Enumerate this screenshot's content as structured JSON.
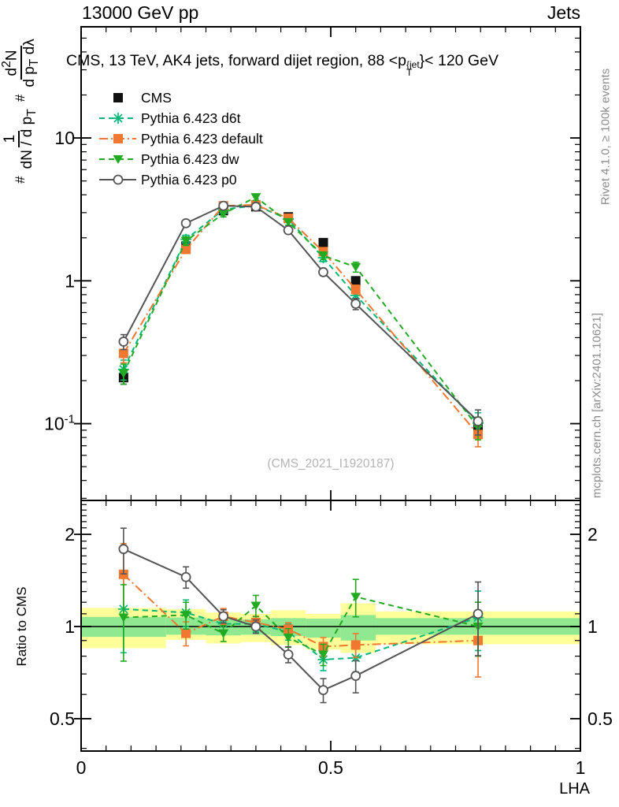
{
  "page": {
    "header_left": "13000 GeV pp",
    "header_right": "Jets",
    "watermark": "(CMS_2021_I1920187)",
    "credit_top": "Rivet 4.1.0, ≥ 100k events",
    "credit_bottom": "mcplots.cern.ch [arXiv:2401.10621]",
    "xlabel": "LHA",
    "ratio_ylabel": "Ratio to CMS"
  },
  "title": {
    "pre": "CMS, 13 TeV, AK4 jets, forward dijet region, 88 <p",
    "sup": "{jet",
    "sub": "T",
    "post": "}< 120 GeV"
  },
  "ylabel": {
    "hash1": "#",
    "f1num": "1",
    "f1den_pre": "dN / d p",
    "f1den_sub": "T",
    "hash2": "#",
    "f2num_pre": "d",
    "f2num_sup": "2",
    "f2num_post": "N",
    "f2den_pre": "d p",
    "f2den_sub": "T",
    "f2den_post": " dλ"
  },
  "colors": {
    "band_yellow": "#ffff99",
    "band_green": "#90e890",
    "cms": "#111111",
    "d6t": "#00b878",
    "default": "#f07830",
    "dw": "#22aa22",
    "p0": "#555555"
  },
  "chart_data": [
    {
      "type": "line",
      "panel": "main",
      "title": "CMS, 13 TeV, AK4 jets, forward dijet region, 88 <p_T^{jet}< 120 GeV",
      "xlabel": "LHA",
      "ylabel": "# 1/(dN/dp_T) # d²N/(dp_T dλ)",
      "legend_position": "top-left",
      "grid": false,
      "xlim": [
        0,
        1
      ],
      "ylim_log": [
        0.029,
        60
      ],
      "x": [
        0.085,
        0.21,
        0.285,
        0.35,
        0.415,
        0.485,
        0.55,
        0.795
      ],
      "y_major_ticks": [
        {
          "v": 10,
          "label": "10"
        },
        {
          "v": 1,
          "label": "1"
        },
        {
          "v": 0.1,
          "label": "10",
          "exp": "-1"
        }
      ],
      "x_major_ticks": [
        {
          "v": 0,
          "label": "0"
        },
        {
          "v": 0.5,
          "label": "0.5"
        },
        {
          "v": 1,
          "label": "1"
        }
      ],
      "series": [
        {
          "id": "cms",
          "name": "CMS",
          "color": "#111111",
          "line": "none",
          "marker": "square",
          "values": [
            0.21,
            1.75,
            3.1,
            3.3,
            2.8,
            1.85,
            1.0,
            0.094
          ],
          "err_frac": [
            0.1,
            0.04,
            0.03,
            0.03,
            0.03,
            0.04,
            0.05,
            0.12
          ]
        },
        {
          "id": "d6t",
          "name": "Pythia 6.423 d6t",
          "color": "#00b878",
          "line": "dash",
          "marker": "star",
          "values": [
            0.24,
            1.95,
            3.15,
            3.37,
            2.7,
            1.45,
            0.79,
            0.101
          ],
          "err_frac": [
            0.16,
            0.07,
            0.05,
            0.05,
            0.05,
            0.06,
            0.08,
            0.18
          ]
        },
        {
          "id": "default",
          "name": "Pythia 6.423 default",
          "color": "#f07830",
          "line": "dashdot",
          "marker": "square",
          "values": [
            0.31,
            1.66,
            3.35,
            3.4,
            2.74,
            1.6,
            0.87,
            0.084
          ],
          "err_frac": [
            0.14,
            0.06,
            0.04,
            0.04,
            0.04,
            0.05,
            0.07,
            0.18
          ]
        },
        {
          "id": "dw",
          "name": "Pythia 6.423 dw",
          "color": "#22aa22",
          "line": "dash",
          "marker": "triangle-down",
          "values": [
            0.225,
            1.9,
            2.95,
            3.85,
            2.58,
            1.5,
            1.25,
            0.094
          ],
          "err_frac": [
            0.16,
            0.07,
            0.05,
            0.05,
            0.05,
            0.06,
            0.08,
            0.18
          ]
        },
        {
          "id": "p0",
          "name": "Pythia 6.423 p0",
          "color": "#555555",
          "line": "solid",
          "marker": "circle-open",
          "values": [
            0.375,
            2.53,
            3.35,
            3.3,
            2.26,
            1.15,
            0.69,
            0.104
          ],
          "err_frac": [
            0.12,
            0.05,
            0.04,
            0.04,
            0.04,
            0.06,
            0.09,
            0.2
          ]
        }
      ]
    },
    {
      "type": "line",
      "panel": "ratio",
      "ylabel": "Ratio to CMS",
      "grid": false,
      "refline": 1,
      "xlim": [
        0,
        1
      ],
      "ylim_log": [
        0.392,
        2.58
      ],
      "x": [
        0.085,
        0.21,
        0.285,
        0.35,
        0.415,
        0.485,
        0.55,
        0.795
      ],
      "y_major_ticks": [
        {
          "v": 2,
          "label": "2"
        },
        {
          "v": 1,
          "label": "1"
        },
        {
          "v": 0.5,
          "label": "0.5"
        }
      ],
      "x_major_ticks": [
        {
          "v": 0,
          "label": "0"
        },
        {
          "v": 0.5,
          "label": "0.5"
        },
        {
          "v": 1,
          "label": "1"
        }
      ],
      "bands": [
        {
          "x0": 0.0,
          "x1": 0.17,
          "ylo": 0.85,
          "yhi": 1.15,
          "glo": 0.925,
          "ghi": 1.075
        },
        {
          "x0": 0.17,
          "x1": 0.25,
          "ylo": 0.905,
          "yhi": 1.14,
          "glo": 0.94,
          "ghi": 1.07
        },
        {
          "x0": 0.25,
          "x1": 0.32,
          "ylo": 0.88,
          "yhi": 1.11,
          "glo": 0.935,
          "ghi": 1.055
        },
        {
          "x0": 0.32,
          "x1": 0.38,
          "ylo": 0.89,
          "yhi": 1.1,
          "glo": 0.94,
          "ghi": 1.055
        },
        {
          "x0": 0.38,
          "x1": 0.45,
          "ylo": 0.87,
          "yhi": 1.13,
          "glo": 0.93,
          "ghi": 1.065
        },
        {
          "x0": 0.45,
          "x1": 0.52,
          "ylo": 0.84,
          "yhi": 1.1,
          "glo": 0.92,
          "ghi": 1.06
        },
        {
          "x0": 0.52,
          "x1": 0.59,
          "ylo": 0.82,
          "yhi": 1.19,
          "glo": 0.9,
          "ghi": 1.09
        },
        {
          "x0": 0.59,
          "x1": 1.0,
          "ylo": 0.875,
          "yhi": 1.12,
          "glo": 0.94,
          "ghi": 1.065
        }
      ],
      "series": [
        {
          "id": "d6t",
          "name": "Pythia 6.423 d6t",
          "color": "#00b878",
          "line": "dash",
          "marker": "star",
          "values": [
            1.14,
            1.11,
            1.02,
            1.02,
            0.96,
            0.78,
            0.79,
            1.07
          ],
          "err_frac": [
            0.28,
            0.1,
            0.06,
            0.06,
            0.06,
            0.08,
            0.1,
            0.22
          ]
        },
        {
          "id": "default",
          "name": "Pythia 6.423 default",
          "color": "#f07830",
          "line": "dashdot",
          "marker": "square",
          "values": [
            1.48,
            0.95,
            1.08,
            1.03,
            0.98,
            0.86,
            0.87,
            0.9
          ],
          "err_frac": [
            0.26,
            0.09,
            0.06,
            0.05,
            0.05,
            0.07,
            0.09,
            0.24
          ]
        },
        {
          "id": "dw",
          "name": "Pythia 6.423 dw",
          "color": "#22aa22",
          "line": "dash",
          "marker": "triangle-down",
          "values": [
            1.07,
            1.09,
            0.95,
            1.17,
            0.92,
            0.81,
            1.25,
            1.0
          ],
          "err_frac": [
            0.28,
            0.1,
            0.06,
            0.08,
            0.07,
            0.08,
            0.14,
            0.2
          ]
        },
        {
          "id": "p0",
          "name": "Pythia 6.423 p0",
          "color": "#555555",
          "line": "solid",
          "marker": "circle-open",
          "values": [
            1.79,
            1.45,
            1.08,
            1.0,
            0.81,
            0.62,
            0.69,
            1.1
          ],
          "err_frac": [
            0.17,
            0.08,
            0.05,
            0.05,
            0.06,
            0.09,
            0.12,
            0.27
          ]
        }
      ]
    }
  ]
}
